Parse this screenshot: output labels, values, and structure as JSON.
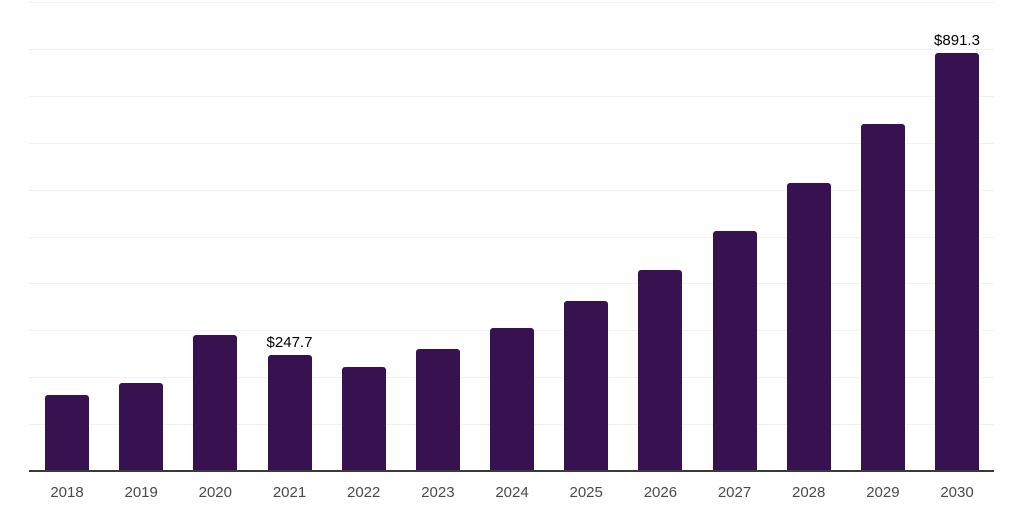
{
  "chart": {
    "background_color": "#ffffff",
    "bar_color": "#371150",
    "grid_color": "#f2f2f2",
    "axis_color": "#3a3a3a",
    "tick_label_color": "#4a4a4a",
    "data_label_color": "#000000"
  },
  "chart_data": {
    "type": "bar",
    "title": "",
    "xlabel": "",
    "ylabel": "",
    "categories": [
      "2018",
      "2019",
      "2020",
      "2021",
      "2022",
      "2023",
      "2024",
      "2025",
      "2026",
      "2027",
      "2028",
      "2029",
      "2030"
    ],
    "values": [
      162,
      187,
      290,
      247.7,
      221,
      260,
      306,
      362,
      428,
      512,
      614,
      739,
      891.3
    ],
    "data_labels": [
      {
        "category": "2021",
        "text": "$247.7"
      },
      {
        "category": "2030",
        "text": "$891.3"
      }
    ],
    "ylim": [
      0,
      1000
    ],
    "gridline_step": 100,
    "grid": true,
    "y_tick_labels_visible": false,
    "legend": false
  }
}
